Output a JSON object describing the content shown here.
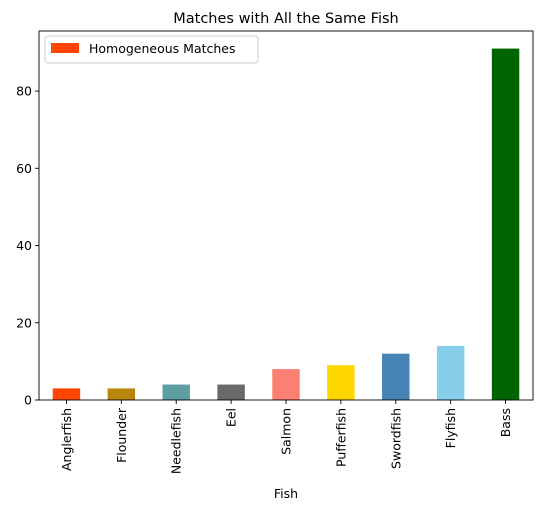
{
  "chart_data": {
    "type": "bar",
    "title": "Matches with All the Same Fish",
    "xlabel": "Fish",
    "ylabel": "",
    "categories": [
      "Anglerfish",
      "Flounder",
      "Needlefish",
      "Eel",
      "Salmon",
      "Pufferfish",
      "Swordfish",
      "Flyfish",
      "Bass"
    ],
    "values": [
      3,
      3,
      4,
      4,
      8,
      9,
      12,
      14,
      91
    ],
    "colors": [
      "#ff4500",
      "#b8860b",
      "#5f9ea0",
      "#696969",
      "#fa8072",
      "#ffd700",
      "#4682b4",
      "#87ceeb",
      "#006400"
    ],
    "yticks": [
      0,
      20,
      40,
      60,
      80
    ],
    "ylim": [
      0,
      95.55
    ],
    "grid": false,
    "legend": {
      "position": "top-left",
      "entries": [
        {
          "label": "Homogeneous Matches",
          "color": "#ff4500"
        }
      ]
    }
  }
}
